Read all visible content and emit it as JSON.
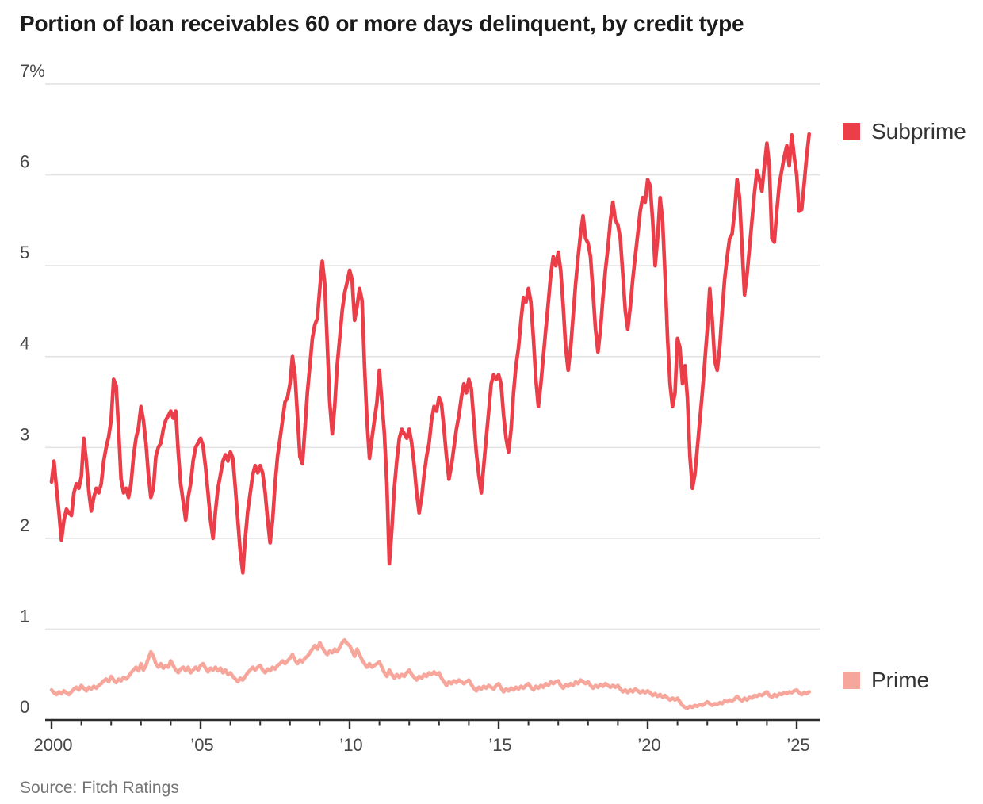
{
  "title": "Portion of loan receivables 60 or more days delinquent, by credit type",
  "source": "Source: Fitch Ratings",
  "legend": {
    "subprime": "Subprime",
    "prime": "Prime"
  },
  "colors": {
    "subprime": "#ec3e49",
    "prime": "#f6a69b",
    "grid": "#e4e4e4",
    "axis": "#2c2c2c",
    "tick_text": "#474747",
    "title_text": "#1b1b1b",
    "source_text": "#757575"
  },
  "chart_data": {
    "type": "line",
    "title": "Portion of loan receivables 60 or more days delinquent, by credit type",
    "xlabel": "",
    "ylabel": "percent",
    "grid": "horizontal",
    "legend_position": "right",
    "x_range_years": [
      2000,
      2025.8
    ],
    "ylim": [
      0,
      7
    ],
    "y_ticks": [
      {
        "value": 0,
        "label": "0"
      },
      {
        "value": 1,
        "label": "1"
      },
      {
        "value": 2,
        "label": "2"
      },
      {
        "value": 3,
        "label": "3"
      },
      {
        "value": 4,
        "label": "4"
      },
      {
        "value": 5,
        "label": "5"
      },
      {
        "value": 6,
        "label": "6"
      },
      {
        "value": 7,
        "label": "7%"
      }
    ],
    "x_major_ticks": [
      {
        "year": 2000,
        "label": "2000"
      },
      {
        "year": 2005,
        "label": "’05"
      },
      {
        "year": 2010,
        "label": "’10"
      },
      {
        "year": 2015,
        "label": "’15"
      },
      {
        "year": 2020,
        "label": "’20"
      },
      {
        "year": 2025,
        "label": "’25"
      }
    ],
    "x_minor_tick_every_years": 1,
    "series": [
      {
        "name": "Subprime",
        "color": "#ec3e49",
        "start_year": 2000,
        "cadence_per_year": 12,
        "values_by_year": [
          [
            2.62,
            2.85,
            2.55,
            2.28,
            1.98,
            2.2,
            2.32,
            2.28,
            2.25,
            2.5,
            2.6,
            2.55
          ],
          [
            2.68,
            3.1,
            2.85,
            2.52,
            2.3,
            2.45,
            2.55,
            2.5,
            2.6,
            2.85,
            3.0,
            3.12
          ],
          [
            3.3,
            3.75,
            3.68,
            3.2,
            2.65,
            2.5,
            2.55,
            2.45,
            2.6,
            2.9,
            3.1,
            3.22
          ],
          [
            3.45,
            3.3,
            3.05,
            2.7,
            2.45,
            2.55,
            2.9,
            3.0,
            3.05,
            3.2,
            3.3,
            3.35
          ],
          [
            3.4,
            3.32,
            3.4,
            2.95,
            2.6,
            2.4,
            2.2,
            2.45,
            2.6,
            2.85,
            3.0,
            3.05
          ],
          [
            3.1,
            3.02,
            2.78,
            2.5,
            2.2,
            2.0,
            2.3,
            2.55,
            2.7,
            2.85,
            2.92,
            2.85
          ],
          [
            2.95,
            2.88,
            2.55,
            2.2,
            1.85,
            1.62,
            2.0,
            2.3,
            2.5,
            2.7,
            2.8,
            2.72
          ],
          [
            2.8,
            2.72,
            2.5,
            2.2,
            1.95,
            2.2,
            2.6,
            2.9,
            3.1,
            3.3,
            3.5,
            3.55
          ],
          [
            3.7,
            4.0,
            3.8,
            3.35,
            2.9,
            2.82,
            3.2,
            3.6,
            3.9,
            4.2,
            4.35,
            4.42
          ],
          [
            4.75,
            5.05,
            4.8,
            4.15,
            3.5,
            3.15,
            3.45,
            3.9,
            4.2,
            4.5,
            4.7,
            4.82
          ],
          [
            4.95,
            4.85,
            4.4,
            4.55,
            4.75,
            4.62,
            3.9,
            3.3,
            2.88,
            3.1,
            3.3,
            3.5
          ],
          [
            3.85,
            3.5,
            3.15,
            2.6,
            1.72,
            2.1,
            2.55,
            2.85,
            3.1,
            3.2,
            3.15,
            3.1
          ],
          [
            3.2,
            3.05,
            2.8,
            2.5,
            2.28,
            2.45,
            2.7,
            2.9,
            3.05,
            3.3,
            3.45,
            3.4
          ],
          [
            3.55,
            3.48,
            3.2,
            2.9,
            2.65,
            2.8,
            3.0,
            3.2,
            3.35,
            3.55,
            3.7,
            3.6
          ],
          [
            3.75,
            3.65,
            3.3,
            2.95,
            2.7,
            2.5,
            2.8,
            3.1,
            3.4,
            3.7,
            3.8,
            3.75
          ],
          [
            3.8,
            3.7,
            3.35,
            3.1,
            2.95,
            3.2,
            3.6,
            3.9,
            4.1,
            4.4,
            4.65,
            4.6
          ],
          [
            4.75,
            4.6,
            4.2,
            3.75,
            3.45,
            3.7,
            4.0,
            4.3,
            4.6,
            4.9,
            5.1,
            5.0
          ],
          [
            5.15,
            4.95,
            4.55,
            4.1,
            3.85,
            4.1,
            4.45,
            4.8,
            5.1,
            5.35,
            5.55,
            5.3
          ],
          [
            5.25,
            5.1,
            4.7,
            4.3,
            4.05,
            4.3,
            4.65,
            4.95,
            5.2,
            5.5,
            5.7,
            5.5
          ],
          [
            5.45,
            5.3,
            4.9,
            4.5,
            4.3,
            4.55,
            4.85,
            5.1,
            5.35,
            5.6,
            5.75,
            5.7
          ],
          [
            5.95,
            5.88,
            5.5,
            5.0,
            5.3,
            5.75,
            5.5,
            4.9,
            4.2,
            3.7,
            3.45,
            3.6
          ],
          [
            4.2,
            4.1,
            3.7,
            3.9,
            3.55,
            2.9,
            2.55,
            2.7,
            3.0,
            3.3,
            3.6,
            3.95
          ],
          [
            4.3,
            4.75,
            4.4,
            3.95,
            3.85,
            4.1,
            4.5,
            4.85,
            5.1,
            5.3,
            5.35,
            5.6
          ],
          [
            5.95,
            5.75,
            5.2,
            4.68,
            4.9,
            5.2,
            5.5,
            5.8,
            6.05,
            5.95,
            5.82,
            6.1
          ],
          [
            6.35,
            6.1,
            5.3,
            5.26,
            5.6,
            5.9,
            6.05,
            6.2,
            6.32,
            6.1,
            6.44,
            6.2
          ],
          [
            6.0,
            5.6,
            5.62,
            5.9,
            6.2,
            6.45
          ]
        ]
      },
      {
        "name": "Prime",
        "color": "#f6a69b",
        "start_year": 2000,
        "cadence_per_year": 12,
        "values_by_year": [
          [
            0.33,
            0.3,
            0.28,
            0.31,
            0.29,
            0.32,
            0.3,
            0.28,
            0.31,
            0.34,
            0.36,
            0.33
          ],
          [
            0.38,
            0.35,
            0.32,
            0.36,
            0.34,
            0.37,
            0.35,
            0.38,
            0.4,
            0.43,
            0.45,
            0.42
          ],
          [
            0.48,
            0.44,
            0.41,
            0.45,
            0.43,
            0.47,
            0.45,
            0.48,
            0.52,
            0.55,
            0.58,
            0.54
          ],
          [
            0.62,
            0.55,
            0.6,
            0.68,
            0.75,
            0.7,
            0.62,
            0.58,
            0.62,
            0.57,
            0.6,
            0.58
          ],
          [
            0.65,
            0.6,
            0.55,
            0.52,
            0.56,
            0.58,
            0.54,
            0.58,
            0.52,
            0.55,
            0.58,
            0.55
          ],
          [
            0.6,
            0.62,
            0.57,
            0.53,
            0.57,
            0.55,
            0.58,
            0.54,
            0.57,
            0.52,
            0.55,
            0.5
          ],
          [
            0.52,
            0.48,
            0.45,
            0.42,
            0.46,
            0.44,
            0.48,
            0.52,
            0.55,
            0.58,
            0.55,
            0.58
          ],
          [
            0.6,
            0.55,
            0.52,
            0.56,
            0.54,
            0.58,
            0.56,
            0.6,
            0.62,
            0.65,
            0.62,
            0.65
          ],
          [
            0.68,
            0.72,
            0.66,
            0.62,
            0.66,
            0.64,
            0.68,
            0.7,
            0.74,
            0.78,
            0.82,
            0.78
          ],
          [
            0.85,
            0.8,
            0.75,
            0.72,
            0.76,
            0.74,
            0.78,
            0.75,
            0.8,
            0.85,
            0.88,
            0.84
          ],
          [
            0.82,
            0.76,
            0.7,
            0.78,
            0.72,
            0.66,
            0.62,
            0.58,
            0.62,
            0.58,
            0.6,
            0.62
          ],
          [
            0.64,
            0.58,
            0.52,
            0.48,
            0.55,
            0.5,
            0.46,
            0.5,
            0.47,
            0.5,
            0.48,
            0.52
          ],
          [
            0.55,
            0.5,
            0.47,
            0.44,
            0.48,
            0.46,
            0.5,
            0.48,
            0.52,
            0.5,
            0.53,
            0.5
          ],
          [
            0.52,
            0.46,
            0.42,
            0.38,
            0.42,
            0.4,
            0.43,
            0.41,
            0.44,
            0.42,
            0.4,
            0.42
          ],
          [
            0.44,
            0.39,
            0.35,
            0.32,
            0.36,
            0.34,
            0.37,
            0.35,
            0.38,
            0.36,
            0.34,
            0.38
          ],
          [
            0.4,
            0.35,
            0.31,
            0.34,
            0.32,
            0.35,
            0.33,
            0.36,
            0.34,
            0.37,
            0.35,
            0.38
          ],
          [
            0.4,
            0.36,
            0.33,
            0.37,
            0.35,
            0.38,
            0.36,
            0.4,
            0.38,
            0.42,
            0.4,
            0.42
          ],
          [
            0.43,
            0.38,
            0.35,
            0.39,
            0.37,
            0.4,
            0.38,
            0.42,
            0.4,
            0.44,
            0.42,
            0.4
          ],
          [
            0.42,
            0.38,
            0.35,
            0.38,
            0.36,
            0.39,
            0.37,
            0.4,
            0.38,
            0.36,
            0.38,
            0.36
          ],
          [
            0.38,
            0.34,
            0.31,
            0.33,
            0.3,
            0.33,
            0.31,
            0.34,
            0.32,
            0.3,
            0.32,
            0.3
          ],
          [
            0.32,
            0.3,
            0.27,
            0.29,
            0.26,
            0.28,
            0.25,
            0.27,
            0.24,
            0.22,
            0.24,
            0.22
          ],
          [
            0.24,
            0.2,
            0.16,
            0.14,
            0.13,
            0.15,
            0.14,
            0.16,
            0.15,
            0.17,
            0.16,
            0.18
          ],
          [
            0.2,
            0.18,
            0.16,
            0.18,
            0.17,
            0.19,
            0.18,
            0.21,
            0.2,
            0.22,
            0.21,
            0.23
          ],
          [
            0.26,
            0.23,
            0.21,
            0.24,
            0.22,
            0.25,
            0.24,
            0.27,
            0.26,
            0.28,
            0.27,
            0.29
          ],
          [
            0.31,
            0.27,
            0.25,
            0.28,
            0.26,
            0.29,
            0.28,
            0.3,
            0.29,
            0.31,
            0.3,
            0.32
          ],
          [
            0.33,
            0.3,
            0.28,
            0.3,
            0.29,
            0.31
          ]
        ]
      }
    ]
  }
}
